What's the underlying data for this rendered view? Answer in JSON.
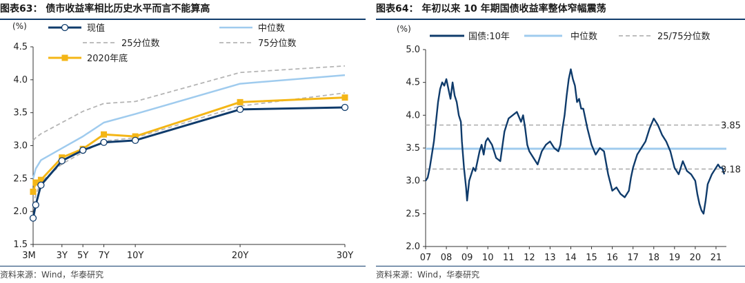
{
  "left_panel": {
    "title": "图表63：  债市收益率相比历史水平而言不能算高",
    "source": "资料来源：Wind，华泰研究"
  },
  "right_panel": {
    "title": "图表64：  年初以来 10 年期国债收益率整体窄幅震荡",
    "source": "资料来源：Wind，华泰研究"
  },
  "colors": {
    "navy": "#0f3b6b",
    "lightblue": "#9fcbee",
    "gray_dash": "#b4b4b4",
    "yellow": "#f4b616"
  },
  "chart_data": [
    {
      "type": "line",
      "ylabel": "(%)",
      "ylim": [
        1.5,
        4.5
      ],
      "yticks": [
        "1.5",
        "2.0",
        "2.5",
        "3.0",
        "3.5",
        "4.0",
        "4.5"
      ],
      "x_terms_years": [
        0.25,
        0.5,
        1,
        3,
        5,
        7,
        10,
        20,
        30
      ],
      "xtick_labels": [
        {
          "label": "3M",
          "x": 0.25
        },
        {
          "label": "3Y",
          "x": 3
        },
        {
          "label": "5Y",
          "x": 5
        },
        {
          "label": "7Y",
          "x": 7
        },
        {
          "label": "10Y",
          "x": 10
        },
        {
          "label": "20Y",
          "x": 20
        },
        {
          "label": "30Y",
          "x": 30
        }
      ],
      "legend_position": "top",
      "series": [
        {
          "name": "现值",
          "style": "navy-circle",
          "values": [
            1.9,
            2.1,
            2.4,
            2.77,
            2.93,
            3.05,
            3.08,
            3.55,
            3.58
          ]
        },
        {
          "name": "中位数",
          "style": "lightblue",
          "values": [
            2.5,
            2.65,
            2.78,
            2.96,
            3.14,
            3.35,
            3.48,
            3.94,
            4.07
          ]
        },
        {
          "name": "25分位数",
          "style": "gray-dash",
          "values": [
            2.1,
            2.25,
            2.45,
            2.72,
            2.9,
            3.07,
            3.12,
            3.6,
            3.8
          ]
        },
        {
          "name": "75分位数",
          "style": "gray-dash",
          "values": [
            3.08,
            3.12,
            3.18,
            3.35,
            3.52,
            3.64,
            3.67,
            4.11,
            4.21
          ]
        },
        {
          "name": "2020年底",
          "style": "yellow-square",
          "values": [
            2.3,
            2.44,
            2.48,
            2.82,
            2.95,
            3.17,
            3.14,
            3.66,
            3.73
          ]
        }
      ]
    },
    {
      "type": "line",
      "ylabel": "(%)",
      "ylim": [
        2.0,
        5.0
      ],
      "yticks": [
        "2.0",
        "2.5",
        "3.0",
        "3.5",
        "4.0",
        "4.5",
        "5.0"
      ],
      "xlim": [
        2007.0,
        2021.5
      ],
      "xtick_labels": [
        "07",
        "08",
        "09",
        "10",
        "11",
        "12",
        "13",
        "14",
        "15",
        "16",
        "17",
        "18",
        "19",
        "20",
        "21"
      ],
      "legend_position": "top",
      "annotations": [
        "3.85",
        "3.18"
      ],
      "reference_lines": [
        {
          "name": "中位数",
          "value": 3.49,
          "style": "lightblue"
        },
        {
          "name": "25/75分位数",
          "value": 3.85,
          "style": "gray-dash"
        },
        {
          "name": "25/75分位数",
          "value": 3.18,
          "style": "gray-dash"
        }
      ],
      "series": [
        {
          "name": "国债:10年",
          "style": "navy",
          "x": [
            2007.0,
            2007.1,
            2007.2,
            2007.3,
            2007.4,
            2007.5,
            2007.6,
            2007.7,
            2007.8,
            2007.9,
            2008.0,
            2008.1,
            2008.2,
            2008.3,
            2008.4,
            2008.5,
            2008.6,
            2008.7,
            2008.75,
            2008.85,
            2008.95,
            2009.0,
            2009.1,
            2009.2,
            2009.3,
            2009.4,
            2009.5,
            2009.6,
            2009.7,
            2009.8,
            2009.9,
            2010.0,
            2010.2,
            2010.4,
            2010.6,
            2010.8,
            2011.0,
            2011.2,
            2011.4,
            2011.6,
            2011.7,
            2011.8,
            2011.9,
            2012.0,
            2012.2,
            2012.4,
            2012.6,
            2012.8,
            2013.0,
            2013.2,
            2013.4,
            2013.5,
            2013.6,
            2013.7,
            2013.8,
            2013.9,
            2014.0,
            2014.1,
            2014.2,
            2014.3,
            2014.4,
            2014.5,
            2014.6,
            2014.8,
            2015.0,
            2015.2,
            2015.4,
            2015.6,
            2015.8,
            2016.0,
            2016.2,
            2016.4,
            2016.6,
            2016.8,
            2016.9,
            2017.0,
            2017.2,
            2017.4,
            2017.6,
            2017.8,
            2018.0,
            2018.2,
            2018.4,
            2018.6,
            2018.8,
            2019.0,
            2019.2,
            2019.4,
            2019.6,
            2019.8,
            2020.0,
            2020.1,
            2020.2,
            2020.3,
            2020.4,
            2020.5,
            2020.6,
            2020.8,
            2021.0,
            2021.1,
            2021.2,
            2021.3,
            2021.4
          ],
          "values": [
            3.0,
            3.05,
            3.2,
            3.4,
            3.6,
            3.9,
            4.2,
            4.4,
            4.5,
            4.45,
            4.55,
            4.4,
            4.25,
            4.5,
            4.3,
            4.2,
            4.0,
            3.9,
            3.6,
            3.2,
            2.9,
            2.7,
            3.0,
            3.1,
            3.2,
            3.15,
            3.3,
            3.45,
            3.55,
            3.4,
            3.6,
            3.65,
            3.55,
            3.35,
            3.3,
            3.75,
            3.95,
            4.0,
            4.05,
            3.9,
            4.0,
            3.8,
            3.55,
            3.45,
            3.35,
            3.25,
            3.45,
            3.55,
            3.6,
            3.5,
            3.45,
            3.55,
            3.8,
            4.0,
            4.3,
            4.55,
            4.7,
            4.55,
            4.45,
            4.2,
            4.25,
            4.1,
            4.1,
            3.8,
            3.55,
            3.4,
            3.5,
            3.45,
            3.1,
            2.85,
            2.9,
            2.8,
            2.75,
            2.85,
            3.05,
            3.2,
            3.4,
            3.5,
            3.6,
            3.8,
            3.95,
            3.85,
            3.7,
            3.6,
            3.45,
            3.2,
            3.1,
            3.3,
            3.15,
            3.1,
            3.0,
            2.8,
            2.65,
            2.55,
            2.5,
            2.7,
            2.95,
            3.1,
            3.2,
            3.25,
            3.2,
            3.2,
            3.1
          ]
        }
      ]
    }
  ]
}
